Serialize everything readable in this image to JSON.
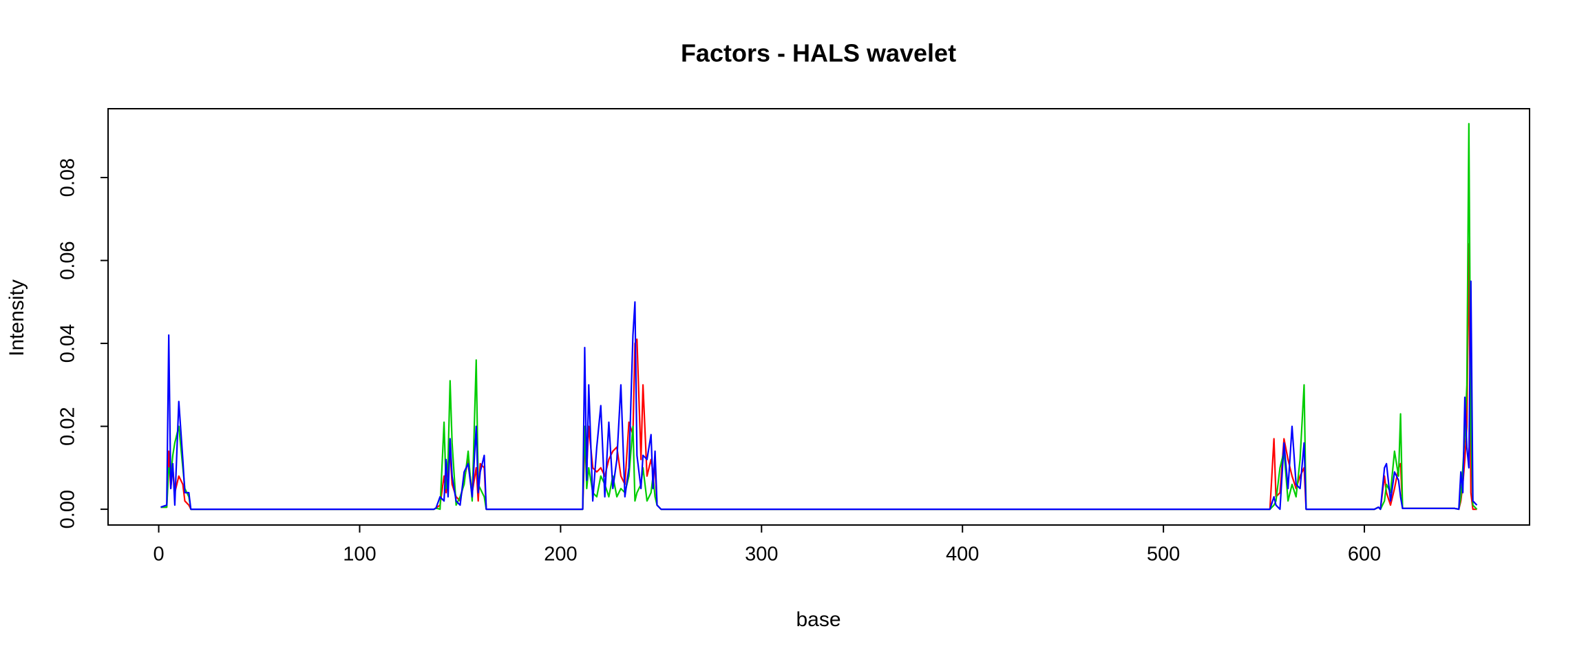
{
  "chart_data": {
    "type": "line",
    "title": "Factors - HALS wavelet",
    "x_label": "base",
    "y_label": "Intensity",
    "xlim": [
      -25.2,
      682.2
    ],
    "ylim": [
      -0.0038,
      0.0966
    ],
    "xticks": [
      0,
      100,
      200,
      300,
      400,
      500,
      600
    ],
    "yticks": [
      {
        "value": 0,
        "label": "0.00"
      },
      0.02,
      0.04,
      0.06,
      0.08
    ],
    "x": [
      1,
      4,
      5,
      6,
      7,
      8,
      10,
      12,
      13,
      15,
      16,
      18,
      137,
      138,
      140,
      142,
      143,
      144,
      145,
      146,
      148,
      150,
      152,
      154,
      156,
      158,
      159,
      160,
      162,
      163,
      165,
      211,
      212,
      213,
      214,
      216,
      218,
      220,
      222,
      224,
      226,
      228,
      230,
      232,
      234,
      236,
      237,
      238,
      240,
      241,
      243,
      245,
      246,
      247,
      248,
      250,
      553,
      555,
      556,
      558,
      560,
      562,
      564,
      566,
      568,
      570,
      571,
      573,
      605,
      607,
      608,
      610,
      611,
      613,
      615,
      617,
      618,
      619,
      645,
      647,
      648,
      649,
      650,
      651,
      652,
      653,
      654,
      656
    ],
    "series": [
      {
        "color": "#ff0000",
        "values": [
          0.0005,
          0.0005,
          0.014,
          0.005,
          0.01,
          0.004,
          0.008,
          0.006,
          0.002,
          0.001,
          0,
          0,
          0,
          0.0003,
          0.001,
          0.008,
          0.004,
          0.01,
          0.014,
          0.006,
          0.003,
          0.002,
          0.007,
          0.012,
          0.004,
          0.01,
          0.002,
          0.011,
          0.01,
          0,
          0,
          0,
          0.015,
          0.01,
          0.02,
          0.01,
          0.009,
          0.01,
          0.008,
          0.012,
          0.014,
          0.015,
          0.008,
          0.006,
          0.021,
          0.018,
          0.04,
          0.041,
          0.012,
          0.03,
          0.008,
          0.012,
          0.009,
          0.01,
          0.001,
          0,
          0,
          0.017,
          0.003,
          0.004,
          0.017,
          0.012,
          0.008,
          0.005,
          0.008,
          0.01,
          0,
          0,
          0,
          0.0005,
          0,
          0.008,
          0.004,
          0.001,
          0.005,
          0.01,
          0.011,
          0.0002,
          0.0002,
          0,
          0.002,
          0.006,
          0.012,
          0.02,
          0.064,
          0.004,
          0,
          0
        ]
      },
      {
        "color": "#00cd00",
        "values": [
          0.0005,
          0.0005,
          0.01,
          0.008,
          0.013,
          0.016,
          0.02,
          0.01,
          0.005,
          0.003,
          0,
          0,
          0,
          0.0003,
          0,
          0.021,
          0.005,
          0.012,
          0.031,
          0.016,
          0.001,
          0.003,
          0.006,
          0.014,
          0.002,
          0.036,
          0.006,
          0.005,
          0.003,
          0,
          0,
          0,
          0.02,
          0.005,
          0.01,
          0.004,
          0.003,
          0.008,
          0.006,
          0.003,
          0.008,
          0.003,
          0.005,
          0.004,
          0.008,
          0.02,
          0.002,
          0.004,
          0.006,
          0.01,
          0.002,
          0.004,
          0.008,
          0.003,
          0.001,
          0,
          0,
          0.001,
          0.002,
          0.01,
          0.014,
          0.002,
          0.006,
          0.003,
          0.012,
          0.03,
          0,
          0,
          0,
          0.0005,
          0,
          0.002,
          0.006,
          0.004,
          0.014,
          0.008,
          0.023,
          0.0002,
          0.0002,
          0,
          0.003,
          0.01,
          0.018,
          0.03,
          0.093,
          0.02,
          0.001,
          0
        ]
      },
      {
        "color": "#0000ff",
        "values": [
          0.0005,
          0.001,
          0.042,
          0.005,
          0.011,
          0.001,
          0.026,
          0.012,
          0.004,
          0.004,
          0,
          0,
          0,
          0.0003,
          0.003,
          0.002,
          0.012,
          0.003,
          0.017,
          0.008,
          0.002,
          0.001,
          0.009,
          0.011,
          0.003,
          0.02,
          0.004,
          0.009,
          0.013,
          0,
          0,
          0,
          0.039,
          0.007,
          0.03,
          0.002,
          0.015,
          0.025,
          0.003,
          0.021,
          0.005,
          0.012,
          0.03,
          0.003,
          0.01,
          0.042,
          0.05,
          0.013,
          0.005,
          0.013,
          0.012,
          0.018,
          0.005,
          0.014,
          0.001,
          0,
          0,
          0.003,
          0.001,
          0,
          0.016,
          0.005,
          0.02,
          0.006,
          0.005,
          0.016,
          0,
          0,
          0,
          0.0005,
          0,
          0.01,
          0.011,
          0.002,
          0.009,
          0.007,
          0.003,
          0.0002,
          0.0002,
          0,
          0.009,
          0.004,
          0.027,
          0.015,
          0.01,
          0.055,
          0.002,
          0.001
        ]
      }
    ]
  }
}
